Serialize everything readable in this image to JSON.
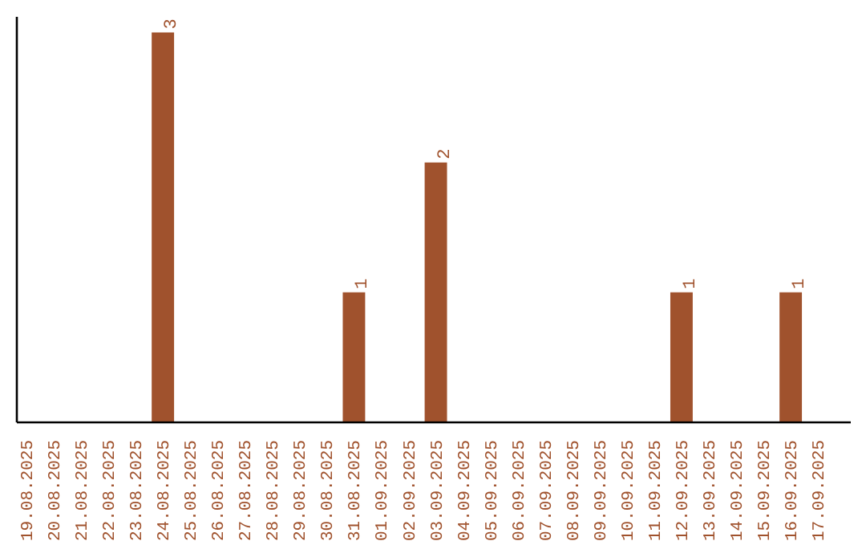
{
  "chart_data": {
    "type": "bar",
    "categories": [
      "19.08.2025",
      "20.08.2025",
      "21.08.2025",
      "22.08.2025",
      "23.08.2025",
      "24.08.2025",
      "25.08.2025",
      "26.08.2025",
      "27.08.2025",
      "28.08.2025",
      "29.08.2025",
      "30.08.2025",
      "31.08.2025",
      "01.09.2025",
      "02.09.2025",
      "03.09.2025",
      "04.09.2025",
      "05.09.2025",
      "06.09.2025",
      "07.09.2025",
      "08.09.2025",
      "09.09.2025",
      "10.09.2025",
      "11.09.2025",
      "12.09.2025",
      "13.09.2025",
      "14.09.2025",
      "15.09.2025",
      "16.09.2025",
      "17.09.2025"
    ],
    "values": [
      0,
      0,
      0,
      0,
      0,
      3,
      0,
      0,
      0,
      0,
      0,
      0,
      1,
      0,
      0,
      2,
      0,
      0,
      0,
      0,
      0,
      0,
      0,
      0,
      1,
      0,
      0,
      0,
      1,
      0
    ],
    "value_labels": [
      null,
      null,
      null,
      null,
      null,
      "3",
      null,
      null,
      null,
      null,
      null,
      null,
      "1",
      null,
      null,
      "2",
      null,
      null,
      null,
      null,
      null,
      null,
      null,
      null,
      "1",
      null,
      null,
      null,
      "1",
      null
    ],
    "color": "#a0522d"
  }
}
